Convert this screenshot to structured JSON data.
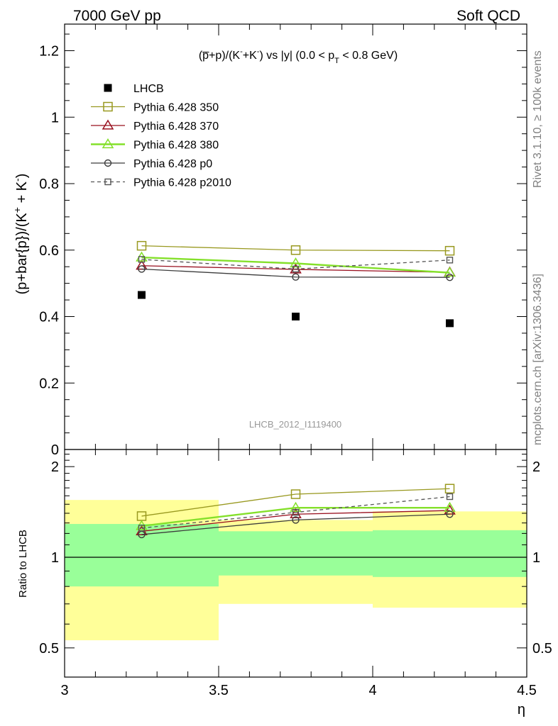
{
  "header": {
    "left": "7000 GeV pp",
    "right": "Soft QCD"
  },
  "side_labels": {
    "rivet": "Rivet 3.1.10, ≥ 100k events",
    "mcplots": "mcplots.cern.ch [arXiv:1306.3436]"
  },
  "chart_data": {
    "type": "line",
    "title": "(p̅+p)/(K⁻+K⁻) vs |y| (0.0 < p_T < 0.8 GeV)",
    "analysis_tag": "LHCB_2012_I1119400",
    "xlabel": "η",
    "ylabel": "(p+bar{p})/(K⁺ + K⁻)",
    "ratio_ylabel": "Ratio to LHCB",
    "xlim": [
      3.0,
      4.5
    ],
    "ylim": [
      0,
      1.28
    ],
    "ratio_ylim": [
      0.4,
      2.28
    ],
    "x_ticks": [
      "3",
      "3.5",
      "4",
      "4.5"
    ],
    "y_ticks": [
      "0",
      "0.2",
      "0.4",
      "0.6",
      "0.8",
      "1",
      "1.2"
    ],
    "ratio_y_ticks": [
      "0.5",
      "1",
      "2"
    ],
    "x": [
      3.25,
      3.75,
      4.25
    ],
    "bins": [
      [
        3.0,
        3.5
      ],
      [
        3.5,
        4.0
      ],
      [
        4.0,
        4.5
      ]
    ],
    "data": {
      "name": "LHCB",
      "color": "#000000",
      "values": [
        0.465,
        0.4,
        0.38
      ],
      "band_inner": [
        [
          0.8,
          1.29
        ],
        [
          0.87,
          1.22
        ],
        [
          0.86,
          1.23
        ]
      ],
      "band_outer": [
        [
          0.53,
          1.55
        ],
        [
          0.7,
          1.33
        ],
        [
          0.68,
          1.42
        ]
      ]
    },
    "band_colors": {
      "inner": "#99ff99",
      "outer": "#ffff99"
    },
    "series": [
      {
        "name": "Pythia 6.428 350",
        "color": "#999920",
        "marker": "square",
        "dash": false,
        "values": [
          0.613,
          0.6,
          0.598
        ],
        "ratio": [
          1.37,
          1.62,
          1.69
        ]
      },
      {
        "name": "Pythia 6.428 370",
        "color": "#99101f",
        "marker": "triangle",
        "dash": false,
        "values": [
          0.553,
          0.542,
          0.533
        ],
        "ratio": [
          1.22,
          1.39,
          1.43
        ]
      },
      {
        "name": "Pythia 6.428 380",
        "color": "#84e02a",
        "marker": "triangle",
        "dash": false,
        "values": [
          0.578,
          0.56,
          0.532
        ],
        "ratio": [
          1.27,
          1.46,
          1.46
        ]
      },
      {
        "name": "Pythia 6.428 p0",
        "color": "#3c3c3c",
        "marker": "circle",
        "dash": false,
        "values": [
          0.543,
          0.519,
          0.518
        ],
        "ratio": [
          1.19,
          1.33,
          1.39
        ]
      },
      {
        "name": "Pythia 6.428 p2010",
        "color": "#555555",
        "marker": "square-small",
        "dash": true,
        "values": [
          0.572,
          0.543,
          0.57
        ],
        "ratio": [
          1.25,
          1.41,
          1.59
        ]
      }
    ]
  }
}
